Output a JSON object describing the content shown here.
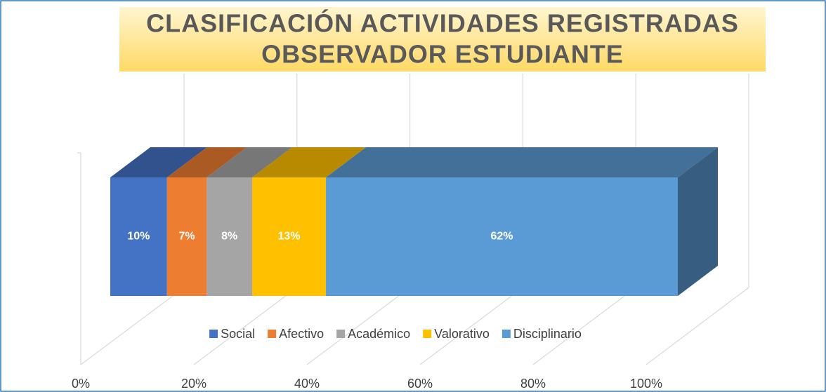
{
  "chart_data": {
    "type": "stacked-bar-3d",
    "title": [
      "CLASIFICACIÓN ACTIVIDADES REGISTRADAS",
      "OBSERVADOR ESTUDIANTE"
    ],
    "series": [
      {
        "name": "Social",
        "color": "#4472c4",
        "values": [
          10
        ],
        "value_labels": [
          "10%"
        ]
      },
      {
        "name": "Afectivo",
        "color": "#ed7d31",
        "values": [
          7
        ],
        "value_labels": [
          "7%"
        ]
      },
      {
        "name": "Académico",
        "color": "#a5a5a5",
        "values": [
          8
        ],
        "value_labels": [
          "8%"
        ]
      },
      {
        "name": "Valorativo",
        "color": "#ffc000",
        "values": [
          13
        ],
        "value_labels": [
          "13%"
        ]
      },
      {
        "name": "Disciplinario",
        "color": "#5b9bd5",
        "values": [
          62
        ],
        "value_labels": [
          "62%"
        ]
      }
    ],
    "xlim": [
      0,
      100
    ],
    "xticks": [
      {
        "value": 0,
        "label": "0%"
      },
      {
        "value": 20,
        "label": "20%"
      },
      {
        "value": 40,
        "label": "40%"
      },
      {
        "value": 60,
        "label": "60%"
      },
      {
        "value": 80,
        "label": "80%"
      },
      {
        "value": 100,
        "label": "100%"
      }
    ],
    "grid": true,
    "legend": "bottom"
  }
}
